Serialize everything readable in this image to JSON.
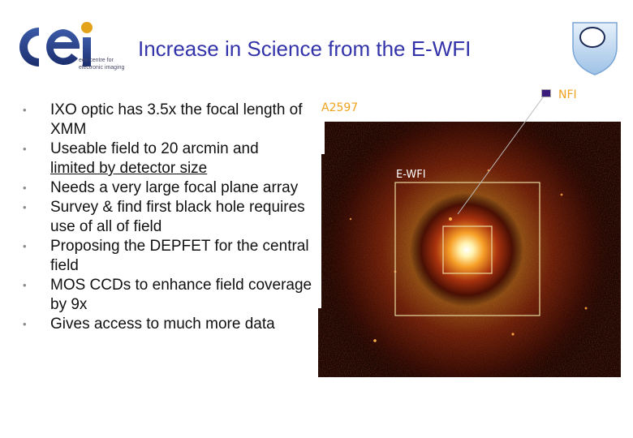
{
  "header": {
    "title": "Increase in Science from the E-WFI",
    "logo_caption_line1": "eev centre for",
    "logo_caption_line2": "electronic imaging"
  },
  "bullets": [
    {
      "text": "IXO optic has 3.5x the focal length of XMM"
    },
    {
      "text": "Useable field to 20 arcmin and",
      "underlined": "limited by detector size"
    },
    {
      "text": "Needs a very large focal plane array"
    },
    {
      "text": "Survey & find first black hole requires use of all of field"
    },
    {
      "text": "Proposing the DEPFET for the central field"
    },
    {
      "text": "MOS CCDs to enhance field coverage by 9x"
    },
    {
      "text": "Gives access to much more data"
    }
  ],
  "image_labels": {
    "cluster": "A2597",
    "wfi": "E-WFI",
    "nfi": "NFI"
  },
  "colors": {
    "title": "#3333aa",
    "label": "#f0a21c",
    "box": "#e9d9a0"
  }
}
